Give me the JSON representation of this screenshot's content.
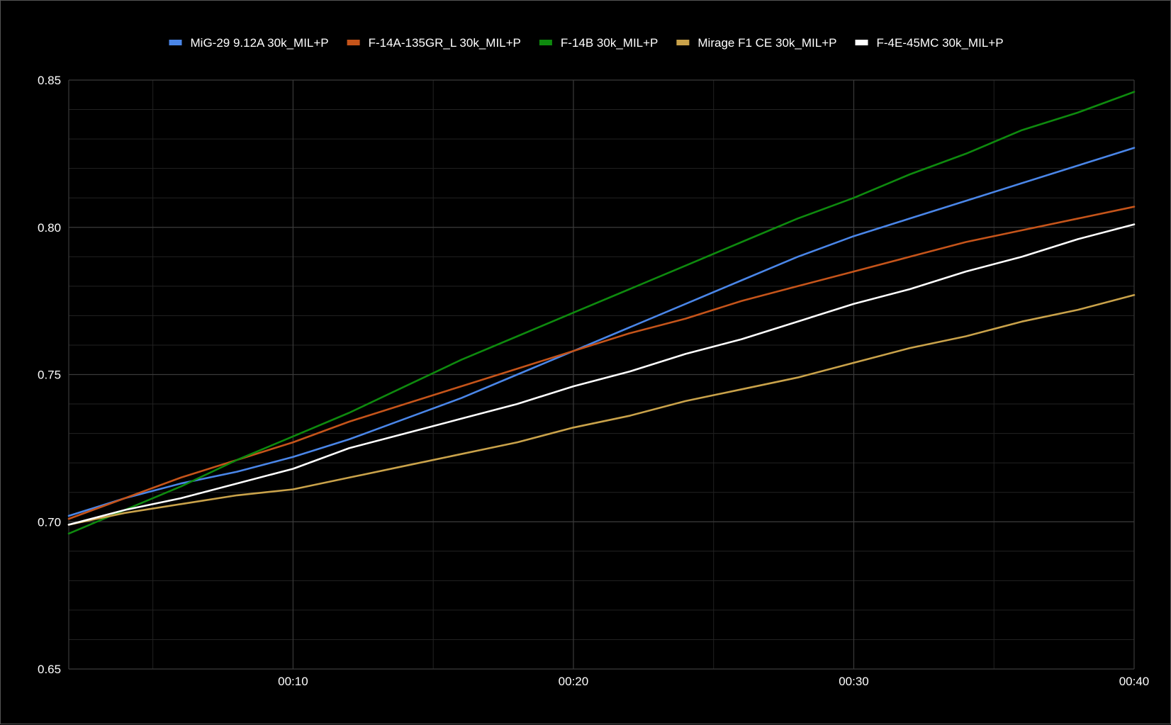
{
  "chart_data": {
    "type": "line",
    "title": "",
    "xlabel": "",
    "ylabel": "",
    "x_unit": "seconds",
    "xlim": [
      2,
      40
    ],
    "ylim": [
      0.65,
      0.85
    ],
    "x_ticks": [
      {
        "value": 10,
        "label": "00:10"
      },
      {
        "value": 20,
        "label": "00:20"
      },
      {
        "value": 30,
        "label": "00:30"
      },
      {
        "value": 40,
        "label": "00:40"
      }
    ],
    "x_minor_ticks": [
      5,
      15,
      25,
      35
    ],
    "y_ticks": [
      {
        "value": 0.65,
        "label": "0.65"
      },
      {
        "value": 0.7,
        "label": "0.70"
      },
      {
        "value": 0.75,
        "label": "0.75"
      },
      {
        "value": 0.8,
        "label": "0.80"
      },
      {
        "value": 0.85,
        "label": "0.85"
      }
    ],
    "y_minor_step": 0.01,
    "grid": true,
    "legend_position": "top-center",
    "series": [
      {
        "name": "MiG-29 9.12A 30k_MIL+P",
        "color": "#4a86e8",
        "x": [
          2,
          4,
          6,
          8,
          10,
          12,
          14,
          16,
          18,
          20,
          22,
          24,
          26,
          28,
          30,
          32,
          34,
          36,
          38,
          40
        ],
        "y": [
          0.702,
          0.708,
          0.713,
          0.717,
          0.722,
          0.728,
          0.735,
          0.742,
          0.75,
          0.758,
          0.766,
          0.774,
          0.782,
          0.79,
          0.797,
          0.803,
          0.809,
          0.815,
          0.821,
          0.827
        ]
      },
      {
        "name": "F-14A-135GR_L 30k_MIL+P",
        "color": "#c5541a",
        "x": [
          2,
          4,
          6,
          8,
          10,
          12,
          14,
          16,
          18,
          20,
          22,
          24,
          26,
          28,
          30,
          32,
          34,
          36,
          38,
          40
        ],
        "y": [
          0.701,
          0.708,
          0.715,
          0.721,
          0.727,
          0.734,
          0.74,
          0.746,
          0.752,
          0.758,
          0.764,
          0.769,
          0.775,
          0.78,
          0.785,
          0.79,
          0.795,
          0.799,
          0.803,
          0.807
        ]
      },
      {
        "name": "F-14B 30k_MIL+P",
        "color": "#0e8a0e",
        "x": [
          2,
          4,
          6,
          8,
          10,
          12,
          14,
          16,
          18,
          20,
          22,
          24,
          26,
          28,
          30,
          32,
          34,
          36,
          38,
          40
        ],
        "y": [
          0.696,
          0.704,
          0.712,
          0.721,
          0.729,
          0.737,
          0.746,
          0.755,
          0.763,
          0.771,
          0.779,
          0.787,
          0.795,
          0.803,
          0.81,
          0.818,
          0.825,
          0.833,
          0.839,
          0.846
        ]
      },
      {
        "name": "Mirage F1 CE 30k_MIL+P",
        "color": "#c9a24a",
        "x": [
          2,
          4,
          6,
          8,
          10,
          12,
          14,
          16,
          18,
          20,
          22,
          24,
          26,
          28,
          30,
          32,
          34,
          36,
          38,
          40
        ],
        "y": [
          0.699,
          0.703,
          0.706,
          0.709,
          0.711,
          0.715,
          0.719,
          0.723,
          0.727,
          0.732,
          0.736,
          0.741,
          0.745,
          0.749,
          0.754,
          0.759,
          0.763,
          0.768,
          0.772,
          0.777
        ]
      },
      {
        "name": "F-4E-45MC 30k_MIL+P",
        "color": "#ffffff",
        "x": [
          2,
          4,
          6,
          8,
          10,
          12,
          14,
          16,
          18,
          20,
          22,
          24,
          26,
          28,
          30,
          32,
          34,
          36,
          38,
          40
        ],
        "y": [
          0.699,
          0.704,
          0.708,
          0.713,
          0.718,
          0.725,
          0.73,
          0.735,
          0.74,
          0.746,
          0.751,
          0.757,
          0.762,
          0.768,
          0.774,
          0.779,
          0.785,
          0.79,
          0.796,
          0.801
        ]
      }
    ]
  }
}
